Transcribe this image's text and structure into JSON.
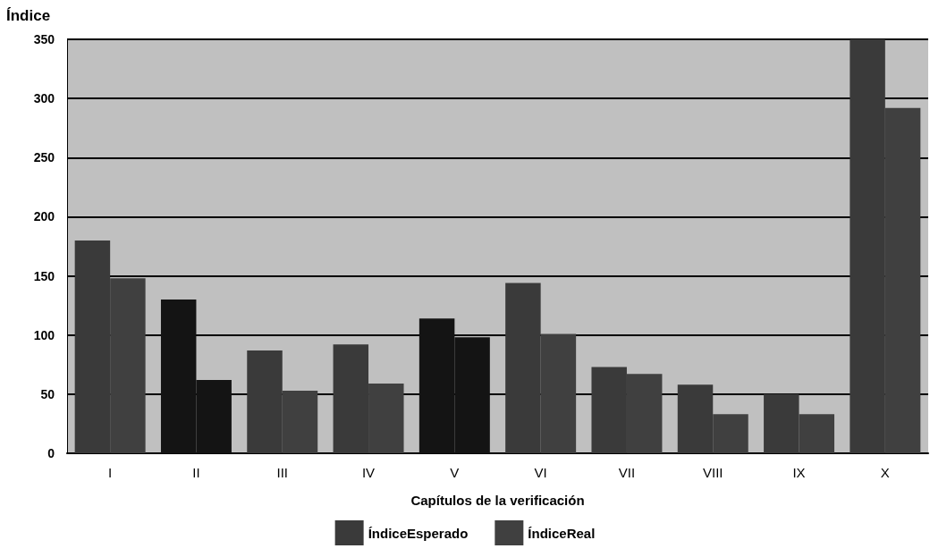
{
  "chart_data": {
    "type": "bar",
    "ylabel": "Índice",
    "xlabel": "Capítulos de la verificación",
    "categories": [
      "I",
      "II",
      "III",
      "IV",
      "V",
      "VI",
      "VII",
      "VIII",
      "IX",
      "X"
    ],
    "series": [
      {
        "name": "ÍndiceEsperado",
        "color": "#3a3a3a",
        "colors": [
          "#3a3a3a",
          "#141414",
          "#3a3a3a",
          "#3a3a3a",
          "#141414",
          "#3a3a3a",
          "#3a3a3a",
          "#3a3a3a",
          "#3a3a3a",
          "#3a3a3a"
        ],
        "values": [
          180,
          130,
          87,
          92,
          114,
          144,
          73,
          58,
          50,
          350
        ]
      },
      {
        "name": "ÍndiceReal",
        "color": "#404040",
        "colors": [
          "#404040",
          "#141414",
          "#404040",
          "#404040",
          "#141414",
          "#404040",
          "#404040",
          "#404040",
          "#404040",
          "#404040"
        ],
        "values": [
          148,
          62,
          53,
          59,
          98,
          101,
          67,
          33,
          33,
          292
        ]
      }
    ],
    "ylim": [
      0,
      350
    ],
    "yticks": [
      0,
      50,
      100,
      150,
      200,
      250,
      300,
      350
    ],
    "grid": "y",
    "legend": "bottom"
  }
}
